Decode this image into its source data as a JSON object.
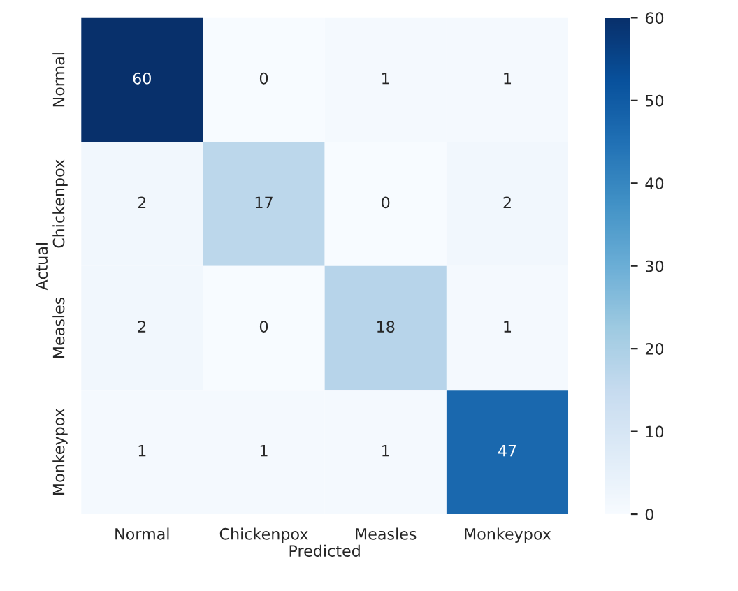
{
  "chart_data": {
    "type": "heatmap",
    "xlabel": "Predicted",
    "ylabel": "Actual",
    "categories": [
      "Normal",
      "Chickenpox",
      "Measles",
      "Monkeypox"
    ],
    "y_categories": [
      "Normal",
      "Chickenpox",
      "Measles",
      "Monkeypox"
    ],
    "cells": [
      [
        60,
        0,
        1,
        1
      ],
      [
        2,
        17,
        0,
        2
      ],
      [
        2,
        0,
        18,
        1
      ],
      [
        1,
        1,
        1,
        47
      ]
    ],
    "data_labels": true,
    "clim": [
      0,
      60
    ],
    "cticks": [
      0,
      10,
      20,
      30,
      40,
      50,
      60
    ]
  }
}
